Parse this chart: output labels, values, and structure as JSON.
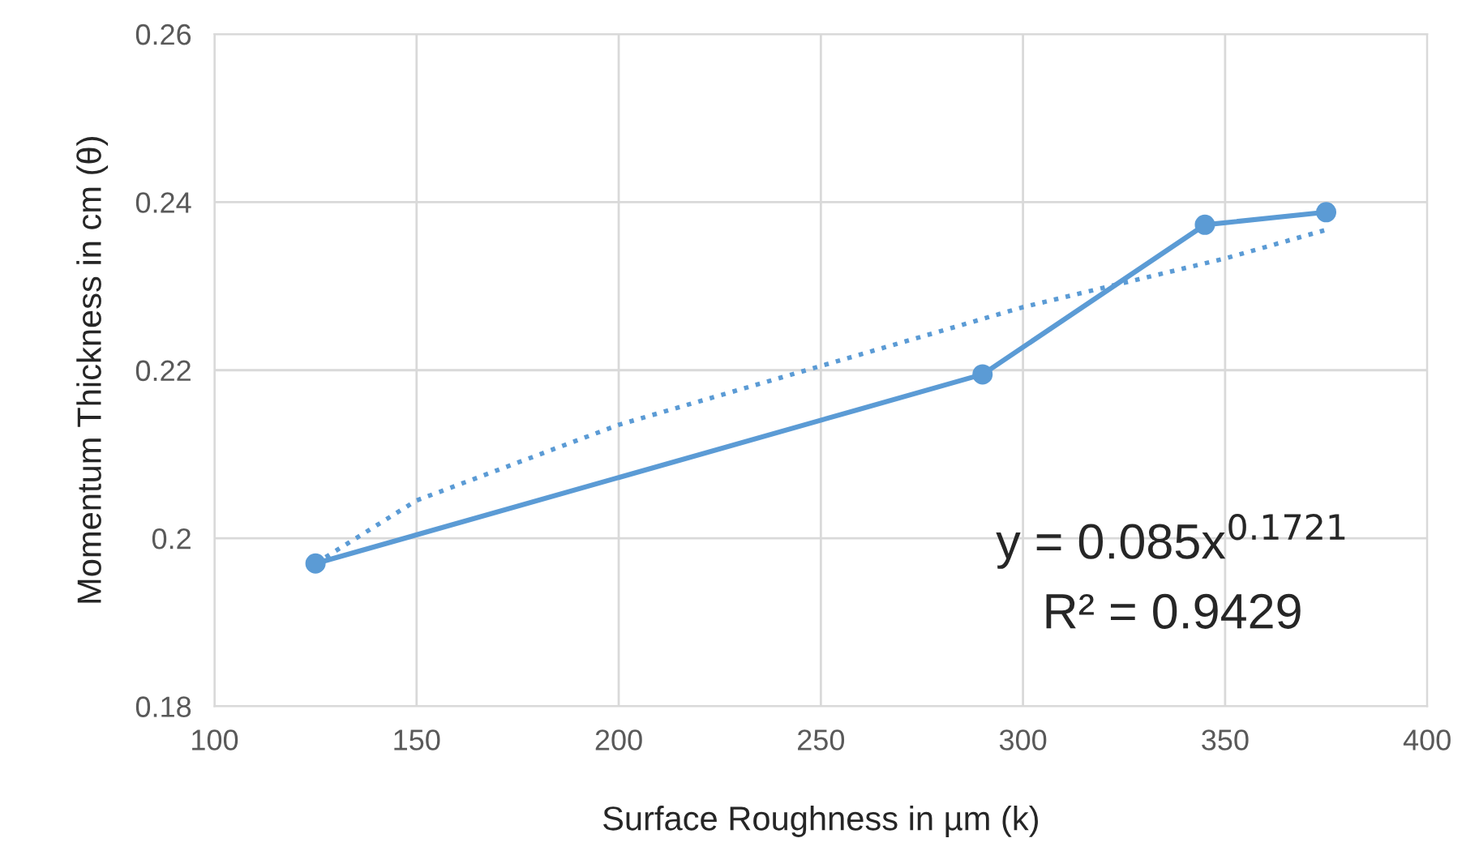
{
  "chart_data": {
    "type": "line",
    "xlabel": "Surface Roughness in µm (k)",
    "ylabel": "Momentum Thickness in cm (θ)",
    "xlim": [
      100,
      400
    ],
    "xticks": [
      100,
      150,
      200,
      250,
      300,
      350,
      400
    ],
    "ylim": [
      0.18,
      0.26
    ],
    "yticks": [
      0.18,
      0.2,
      0.22,
      0.24,
      0.26
    ],
    "grid": true,
    "series": [
      {
        "color": "#5b9bd5",
        "marker": "circle",
        "line_style": "solid",
        "x": [
          125,
          290,
          345,
          375
        ],
        "values": [
          0.197,
          0.2195,
          0.2373,
          0.2388
        ]
      },
      {
        "color": "#5b9bd5",
        "marker": "none",
        "line_style": "dotted",
        "x": [
          125,
          150,
          200,
          250,
          300,
          350,
          375
        ],
        "values": [
          0.197,
          0.2045,
          0.2135,
          0.2205,
          0.2275,
          0.2333,
          0.2367
        ]
      }
    ],
    "annotations": [
      "y = 0.085x$^{0.1721}$",
      "R² = 0.9429"
    ]
  }
}
